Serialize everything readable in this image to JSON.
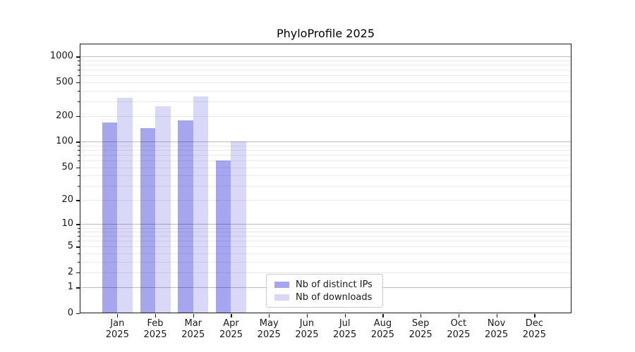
{
  "chart_data": {
    "type": "bar",
    "title": "PhyloProfile 2025",
    "categories": [
      "Jan",
      "Feb",
      "Mar",
      "Apr",
      "May",
      "Jun",
      "Jul",
      "Aug",
      "Sep",
      "Oct",
      "Nov",
      "Dec"
    ],
    "year": "2025",
    "series": [
      {
        "id": "distinct-ips",
        "name": "Nb of distinct IPs",
        "color": "#a6a6ef",
        "values": [
          170,
          146,
          180,
          60,
          0,
          0,
          0,
          0,
          0,
          0,
          0,
          0
        ]
      },
      {
        "id": "downloads",
        "name": "Nb of downloads",
        "color": "#d9d9f7",
        "values": [
          330,
          263,
          345,
          100,
          0,
          0,
          0,
          0,
          0,
          0,
          0,
          0
        ]
      }
    ],
    "yscale": "log1p",
    "yticks": [
      0,
      1,
      2,
      5,
      10,
      20,
      50,
      100,
      200,
      500,
      1000
    ],
    "ylim": [
      0,
      1400
    ],
    "grid": "both",
    "legend_position": "lower-center",
    "xlabel": "",
    "ylabel": ""
  }
}
